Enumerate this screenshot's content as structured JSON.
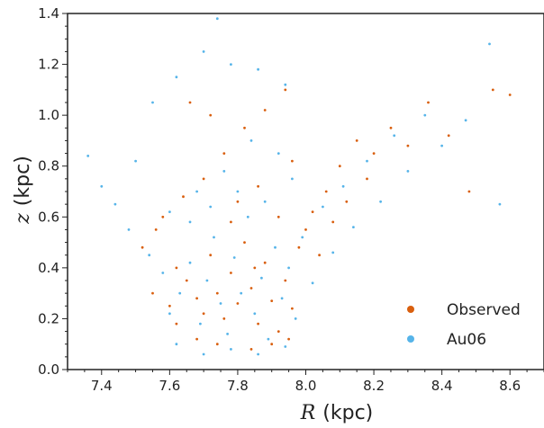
{
  "chart_data": {
    "type": "scatter",
    "title": "",
    "xlabel": {
      "symbol": "R",
      "unit": "(kpc)"
    },
    "ylabel": {
      "symbol": "z",
      "unit": "(kpc)"
    },
    "xlim": [
      7.3,
      8.7
    ],
    "ylim": [
      0.0,
      1.4
    ],
    "x_ticks": [
      "7.4",
      "7.6",
      "7.8",
      "8.0",
      "8.2",
      "8.4",
      "8.6"
    ],
    "y_ticks": [
      "0.0",
      "0.2",
      "0.4",
      "0.6",
      "0.8",
      "1.0",
      "1.2",
      "1.4"
    ],
    "grid": false,
    "legend_position": "lower-right",
    "series": [
      {
        "name": "Observed",
        "color": "#d95f0e",
        "points": [
          [
            7.55,
            0.3
          ],
          [
            7.6,
            0.25
          ],
          [
            7.62,
            0.4
          ],
          [
            7.65,
            0.35
          ],
          [
            7.68,
            0.28
          ],
          [
            7.7,
            0.22
          ],
          [
            7.72,
            0.45
          ],
          [
            7.74,
            0.3
          ],
          [
            7.76,
            0.2
          ],
          [
            7.78,
            0.38
          ],
          [
            7.8,
            0.26
          ],
          [
            7.82,
            0.5
          ],
          [
            7.84,
            0.32
          ],
          [
            7.86,
            0.18
          ],
          [
            7.88,
            0.42
          ],
          [
            7.9,
            0.27
          ],
          [
            7.92,
            0.15
          ],
          [
            7.94,
            0.35
          ],
          [
            7.96,
            0.24
          ],
          [
            7.98,
            0.48
          ],
          [
            8.0,
            0.55
          ],
          [
            8.02,
            0.62
          ],
          [
            8.04,
            0.45
          ],
          [
            8.06,
            0.7
          ],
          [
            8.08,
            0.58
          ],
          [
            8.1,
            0.8
          ],
          [
            8.12,
            0.66
          ],
          [
            8.15,
            0.9
          ],
          [
            8.18,
            0.75
          ],
          [
            8.2,
            0.85
          ],
          [
            8.25,
            0.95
          ],
          [
            8.3,
            0.88
          ],
          [
            8.36,
            1.05
          ],
          [
            8.42,
            0.92
          ],
          [
            8.48,
            0.7
          ],
          [
            8.55,
            1.1
          ],
          [
            8.6,
            1.08
          ],
          [
            7.58,
            0.6
          ],
          [
            7.64,
            0.68
          ],
          [
            7.7,
            0.75
          ],
          [
            7.76,
            0.85
          ],
          [
            7.82,
            0.95
          ],
          [
            7.88,
            1.02
          ],
          [
            7.94,
            1.1
          ],
          [
            7.66,
            1.05
          ],
          [
            7.72,
            1.0
          ],
          [
            7.8,
            0.66
          ],
          [
            7.86,
            0.72
          ],
          [
            7.92,
            0.6
          ],
          [
            7.96,
            0.82
          ],
          [
            7.52,
            0.48
          ],
          [
            7.56,
            0.55
          ],
          [
            7.62,
            0.18
          ],
          [
            7.68,
            0.12
          ],
          [
            7.74,
            0.1
          ],
          [
            7.84,
            0.08
          ],
          [
            7.9,
            0.1
          ],
          [
            7.95,
            0.12
          ],
          [
            7.78,
            0.58
          ],
          [
            7.85,
            0.4
          ]
        ]
      },
      {
        "name": "Au06",
        "color": "#56b4e9",
        "points": [
          [
            7.36,
            0.84
          ],
          [
            7.4,
            0.72
          ],
          [
            7.44,
            0.65
          ],
          [
            7.48,
            0.55
          ],
          [
            7.5,
            0.82
          ],
          [
            7.54,
            0.45
          ],
          [
            7.58,
            0.38
          ],
          [
            7.6,
            0.22
          ],
          [
            7.63,
            0.3
          ],
          [
            7.66,
            0.42
          ],
          [
            7.69,
            0.18
          ],
          [
            7.71,
            0.35
          ],
          [
            7.73,
            0.52
          ],
          [
            7.75,
            0.26
          ],
          [
            7.77,
            0.14
          ],
          [
            7.79,
            0.44
          ],
          [
            7.81,
            0.3
          ],
          [
            7.83,
            0.6
          ],
          [
            7.85,
            0.22
          ],
          [
            7.87,
            0.36
          ],
          [
            7.89,
            0.12
          ],
          [
            7.91,
            0.48
          ],
          [
            7.93,
            0.28
          ],
          [
            7.95,
            0.4
          ],
          [
            7.97,
            0.2
          ],
          [
            7.99,
            0.52
          ],
          [
            8.02,
            0.34
          ],
          [
            8.05,
            0.64
          ],
          [
            8.08,
            0.46
          ],
          [
            8.11,
            0.72
          ],
          [
            8.14,
            0.56
          ],
          [
            8.18,
            0.82
          ],
          [
            8.22,
            0.66
          ],
          [
            8.26,
            0.92
          ],
          [
            8.3,
            0.78
          ],
          [
            8.35,
            1.0
          ],
          [
            8.4,
            0.88
          ],
          [
            8.47,
            0.98
          ],
          [
            8.54,
            1.28
          ],
          [
            8.57,
            0.65
          ],
          [
            7.55,
            1.05
          ],
          [
            7.62,
            1.15
          ],
          [
            7.7,
            1.25
          ],
          [
            7.78,
            1.2
          ],
          [
            7.86,
            1.18
          ],
          [
            7.94,
            1.12
          ],
          [
            7.74,
            1.38
          ],
          [
            7.68,
            0.7
          ],
          [
            7.76,
            0.78
          ],
          [
            7.84,
            0.9
          ],
          [
            7.92,
            0.85
          ],
          [
            7.6,
            0.62
          ],
          [
            7.66,
            0.58
          ],
          [
            7.72,
            0.64
          ],
          [
            7.8,
            0.7
          ],
          [
            7.88,
            0.66
          ],
          [
            7.96,
            0.75
          ],
          [
            7.62,
            0.1
          ],
          [
            7.7,
            0.06
          ],
          [
            7.78,
            0.08
          ],
          [
            7.86,
            0.06
          ],
          [
            7.94,
            0.09
          ]
        ]
      }
    ]
  }
}
